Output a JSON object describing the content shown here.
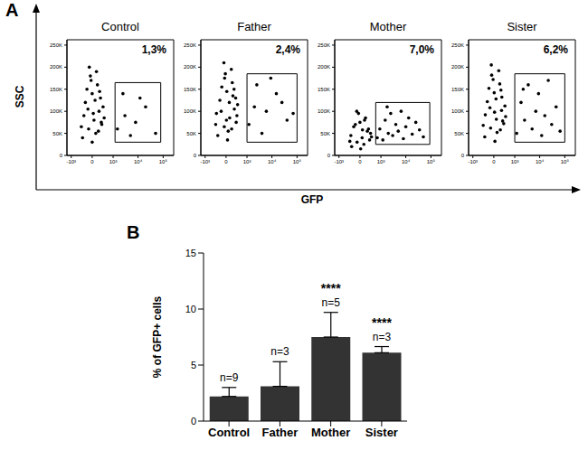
{
  "figure": {
    "panel_labels": [
      "A",
      "B"
    ],
    "x_label": "GFP",
    "y_label": "SSC"
  },
  "chart_data": [
    {
      "type": "scatter",
      "title": "Control",
      "color": "#000000",
      "x": [
        -300,
        -100,
        50,
        200,
        -200,
        0,
        150,
        -50,
        300,
        100,
        -250,
        250,
        -150,
        350,
        0,
        120,
        -80,
        400,
        -350,
        80,
        220,
        -120,
        30,
        180,
        -30,
        280,
        1500,
        3000,
        8000,
        20000,
        2500,
        50000,
        12000,
        5000
      ],
      "y": [
        40000,
        60000,
        80000,
        100000,
        120000,
        140000,
        160000,
        180000,
        70000,
        50000,
        90000,
        130000,
        150000,
        110000,
        30000,
        190000,
        200000,
        85000,
        65000,
        125000,
        145000,
        105000,
        95000,
        55000,
        170000,
        75000,
        60000,
        90000,
        75000,
        110000,
        140000,
        50000,
        130000,
        45000
      ],
      "xlim": [
        -1500,
        262144
      ],
      "ylim": [
        0,
        262144
      ],
      "xticks": [
        {
          "value": -1000,
          "label": "-10³"
        },
        0,
        {
          "value": 1000,
          "label": "10³"
        },
        {
          "value": 10000,
          "label": "10⁴"
        },
        {
          "value": 100000,
          "label": "10⁵"
        }
      ],
      "yticks": [
        0,
        {
          "value": 50000,
          "label": "50K"
        },
        {
          "value": 100000,
          "label": "100K"
        },
        {
          "value": 150000,
          "label": "150K"
        },
        {
          "value": 200000,
          "label": "200K"
        },
        {
          "value": 250000,
          "label": "250K"
        }
      ],
      "gate": {
        "x": [
          1200,
          80000
        ],
        "y": [
          30000,
          165000
        ],
        "value": 1.3,
        "label": "1,3%"
      }
    },
    {
      "type": "scatter",
      "title": "Father",
      "color": "#000000",
      "x": [
        -250,
        -50,
        100,
        250,
        -180,
        20,
        180,
        -20,
        320,
        60,
        -300,
        200,
        -120,
        380,
        40,
        150,
        -60,
        350,
        -330,
        90,
        240,
        -140,
        10,
        160,
        -40,
        300,
        1200,
        2500,
        6000,
        15000,
        40000,
        4000,
        9000,
        25000,
        2000,
        70000
      ],
      "y": [
        45000,
        65000,
        85000,
        105000,
        125000,
        145000,
        165000,
        185000,
        75000,
        55000,
        95000,
        135000,
        155000,
        115000,
        35000,
        195000,
        210000,
        90000,
        70000,
        120000,
        150000,
        100000,
        80000,
        60000,
        175000,
        130000,
        70000,
        160000,
        100000,
        140000,
        80000,
        50000,
        175000,
        120000,
        110000,
        95000
      ],
      "xlim": [
        -1500,
        262144
      ],
      "ylim": [
        0,
        262144
      ],
      "xticks": [
        {
          "value": -1000,
          "label": "-10³"
        },
        0,
        {
          "value": 1000,
          "label": "10³"
        },
        {
          "value": 10000,
          "label": "10⁴"
        },
        {
          "value": 100000,
          "label": "10⁵"
        }
      ],
      "yticks": [
        0,
        {
          "value": 50000,
          "label": "50K"
        },
        {
          "value": 100000,
          "label": "100K"
        },
        {
          "value": 150000,
          "label": "150K"
        },
        {
          "value": 200000,
          "label": "200K"
        },
        {
          "value": 250000,
          "label": "250K"
        }
      ],
      "gate": {
        "x": [
          1000,
          100000
        ],
        "y": [
          30000,
          185000
        ],
        "value": 2.4,
        "label": "2,4%"
      }
    },
    {
      "type": "scatter",
      "title": "Mother",
      "color": "#000000",
      "x": [
        -250,
        -80,
        60,
        220,
        -180,
        0,
        160,
        -40,
        300,
        110,
        -280,
        260,
        -130,
        340,
        20,
        130,
        -90,
        380,
        -320,
        70,
        700,
        900,
        1200,
        1500,
        2000,
        2500,
        3000,
        4000,
        5000,
        6500,
        8000,
        10000,
        13000,
        18000,
        25000,
        35000,
        50000,
        1800
      ],
      "y": [
        20000,
        30000,
        40000,
        55000,
        65000,
        75000,
        85000,
        95000,
        35000,
        25000,
        45000,
        60000,
        70000,
        50000,
        15000,
        80000,
        100000,
        42000,
        32000,
        58000,
        40000,
        60000,
        35000,
        80000,
        50000,
        95000,
        45000,
        70000,
        55000,
        100000,
        38000,
        65000,
        85000,
        48000,
        75000,
        58000,
        42000,
        110000
      ],
      "xlim": [
        -1500,
        262144
      ],
      "ylim": [
        0,
        262144
      ],
      "xticks": [
        {
          "value": -1000,
          "label": "-10³"
        },
        0,
        {
          "value": 1000,
          "label": "10³"
        },
        {
          "value": 10000,
          "label": "10⁴"
        },
        {
          "value": 100000,
          "label": "10⁵"
        }
      ],
      "yticks": [
        0,
        {
          "value": 50000,
          "label": "50K"
        },
        {
          "value": 100000,
          "label": "100K"
        },
        {
          "value": 150000,
          "label": "150K"
        },
        {
          "value": 200000,
          "label": "200K"
        },
        {
          "value": 250000,
          "label": "250K"
        }
      ],
      "gate": {
        "x": [
          600,
          90000
        ],
        "y": [
          25000,
          120000
        ],
        "value": 7.0,
        "label": "7,0%"
      }
    },
    {
      "type": "scatter",
      "title": "Sister",
      "color": "#000000",
      "x": [
        -280,
        -90,
        70,
        230,
        -190,
        10,
        170,
        -60,
        310,
        90,
        -260,
        240,
        -140,
        360,
        30,
        140,
        -70,
        390,
        -340,
        60,
        210,
        -110,
        20,
        190,
        -20,
        270,
        1200,
        1800,
        2500,
        3500,
        5000,
        7000,
        9000,
        12000,
        16000,
        22000,
        30000,
        45000,
        65000,
        2200
      ],
      "y": [
        42000,
        62000,
        82000,
        102000,
        122000,
        142000,
        162000,
        182000,
        72000,
        52000,
        92000,
        132000,
        152000,
        112000,
        32000,
        192000,
        205000,
        88000,
        68000,
        128000,
        148000,
        108000,
        98000,
        58000,
        172000,
        78000,
        50000,
        120000,
        80000,
        160000,
        60000,
        100000,
        140000,
        45000,
        90000,
        170000,
        70000,
        110000,
        55000,
        150000
      ],
      "xlim": [
        -1500,
        262144
      ],
      "ylim": [
        0,
        262144
      ],
      "xticks": [
        {
          "value": -1000,
          "label": "-10³"
        },
        0,
        {
          "value": 1000,
          "label": "10³"
        },
        {
          "value": 10000,
          "label": "10⁴"
        },
        {
          "value": 100000,
          "label": "10⁵"
        }
      ],
      "yticks": [
        0,
        {
          "value": 50000,
          "label": "50K"
        },
        {
          "value": 100000,
          "label": "100K"
        },
        {
          "value": 150000,
          "label": "150K"
        },
        {
          "value": 200000,
          "label": "200K"
        },
        {
          "value": 250000,
          "label": "250K"
        }
      ],
      "gate": {
        "x": [
          1000,
          100000
        ],
        "y": [
          30000,
          185000
        ],
        "value": 6.2,
        "label": "6,2%"
      }
    },
    {
      "type": "bar",
      "categories": [
        "Control",
        "Father",
        "Mother",
        "Sister"
      ],
      "values": [
        2.2,
        3.1,
        7.5,
        6.1
      ],
      "errors": [
        0.8,
        2.2,
        2.2,
        0.55
      ],
      "ylim": [
        0,
        15
      ],
      "yticks": [
        0,
        5,
        10,
        15
      ],
      "y_label": "% of GFP+ cells",
      "color": "#333333",
      "n_labels": [
        "n=9",
        "n=3",
        "n=5",
        "n=3"
      ],
      "significance": [
        null,
        null,
        "****",
        "****"
      ]
    }
  ]
}
